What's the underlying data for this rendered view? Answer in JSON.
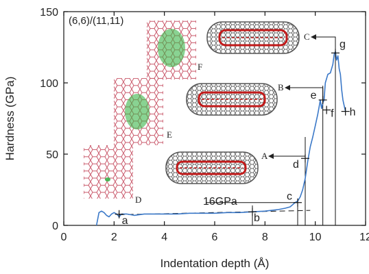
{
  "chart_data": {
    "type": "line",
    "title": "(6,6)/(11,11)",
    "xlabel": "Indentation depth (Å)",
    "ylabel": "Hardness (GPa)",
    "xlim": [
      0,
      12
    ],
    "ylim": [
      0,
      150
    ],
    "x_ticks": [
      0,
      2,
      4,
      6,
      8,
      10,
      12
    ],
    "y_ticks": [
      0,
      50,
      100,
      150
    ],
    "x_tick_labels": [
      "0",
      "2",
      "4",
      "6",
      "8",
      "10",
      "12"
    ],
    "y_tick_labels": [
      "0",
      "50",
      "100",
      "150"
    ],
    "grid": false,
    "line_color": "#3a78c8",
    "series": [
      {
        "name": "",
        "x": [
          1.3,
          1.4,
          1.5,
          1.6,
          1.7,
          1.8,
          1.9,
          2.0,
          2.1,
          2.2,
          2.3,
          2.5,
          2.8,
          3.2,
          3.6,
          4.0,
          4.5,
          5.0,
          5.5,
          6.0,
          6.5,
          7.0,
          7.5,
          8.0,
          8.5,
          8.8,
          9.0,
          9.2,
          9.3,
          9.4,
          9.5,
          9.6,
          9.7,
          9.8,
          9.9,
          10.0,
          10.1,
          10.15,
          10.2,
          10.25,
          10.3,
          10.35,
          10.4,
          10.5,
          10.6,
          10.7,
          10.75,
          10.8,
          10.85,
          10.9,
          10.95,
          11.0,
          11.05,
          11.1,
          11.15,
          11.2
        ],
        "y": [
          0,
          9,
          10,
          9,
          7,
          6,
          8,
          9,
          8,
          6,
          8,
          8,
          7,
          8,
          8,
          8,
          8,
          8.5,
          8.5,
          8.5,
          9,
          9,
          9.5,
          10,
          11,
          12,
          13,
          16,
          17,
          20,
          25,
          33,
          45,
          55,
          62,
          70,
          78,
          83,
          88,
          82,
          86,
          88,
          100,
          106,
          107,
          113,
          120,
          122,
          116,
          119,
          110,
          106,
          95,
          88,
          84,
          80
        ]
      }
    ],
    "vertical_lines_x": [
      7.5,
      9.3,
      9.6,
      10.3,
      10.8
    ],
    "dashed_line": {
      "x": [
        2.2,
        9.8
      ],
      "y": [
        7.5,
        10.5
      ]
    },
    "points": [
      {
        "label": "a",
        "x": 2.2,
        "y": 7.8
      },
      {
        "label": "b",
        "x": 7.5,
        "y": 9.5
      },
      {
        "label": "c",
        "x": 9.3,
        "y": 16
      },
      {
        "label": "d",
        "x": 9.6,
        "y": 47
      },
      {
        "label": "e",
        "x": 10.3,
        "y": 88
      },
      {
        "label": "f",
        "x": 10.45,
        "y": 81
      },
      {
        "label": "g",
        "x": 10.8,
        "y": 121
      },
      {
        "label": "h",
        "x": 11.2,
        "y": 80
      }
    ],
    "annotation_16": {
      "text": "16GPa",
      "value": 16
    },
    "molecule_labels": [
      "A",
      "B",
      "C"
    ],
    "lattice_labels": [
      "D",
      "E",
      "F"
    ],
    "arrows": [
      {
        "from": "d",
        "to": "A"
      },
      {
        "from": "e",
        "to": "B"
      },
      {
        "from": "g",
        "to": "C"
      }
    ]
  }
}
